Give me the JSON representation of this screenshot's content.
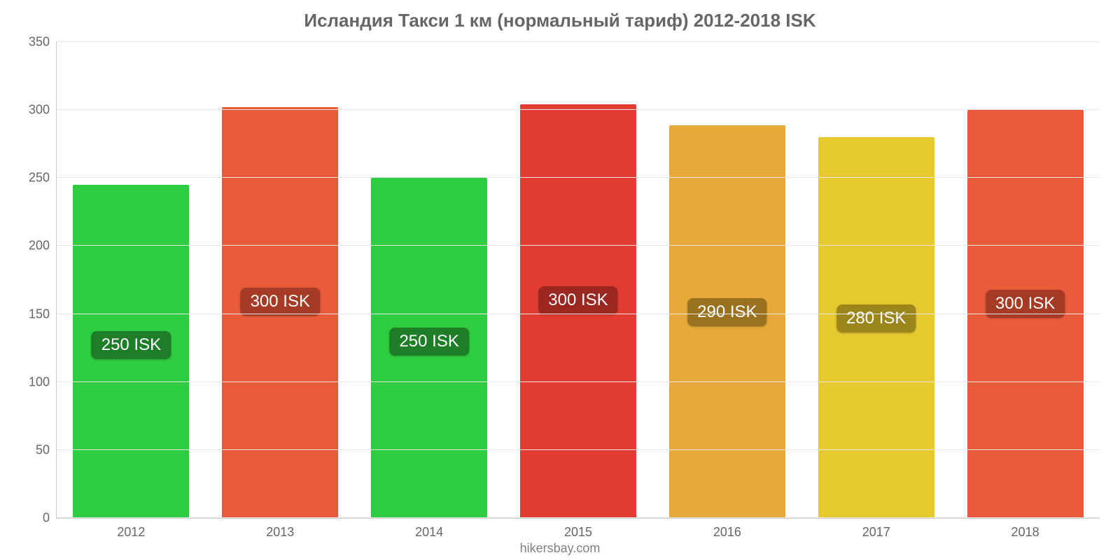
{
  "chart": {
    "type": "bar",
    "title": "Исландия Такси 1 км (нормальный тариф) 2012-2018 ISK",
    "title_fontsize": 26,
    "title_color": "#666666",
    "credit": "hikersbay.com",
    "background_color": "#ffffff",
    "grid_color": "#e6e6e6",
    "axis_color": "#cccccc",
    "xlabel_fontsize": 18,
    "ylabel_fontsize": 18,
    "axis_label_color": "#666666",
    "ylim_min": 0,
    "ylim_max": 350,
    "ytick_step": 50,
    "yticks": [
      0,
      50,
      100,
      150,
      200,
      250,
      300,
      350
    ],
    "bar_width_pct": 78,
    "value_label_fontsize": 24,
    "value_label_text_color": "#ffffff",
    "categories": [
      "2012",
      "2013",
      "2014",
      "2015",
      "2016",
      "2017",
      "2018"
    ],
    "bars": [
      {
        "year": "2012",
        "value": 245,
        "label": "250 ISK",
        "color": "#2ecc40",
        "label_bg": "#1e7e28"
      },
      {
        "year": "2013",
        "value": 302,
        "label": "300 ISK",
        "color": "#e95b3a",
        "label_bg": "#a53b24"
      },
      {
        "year": "2014",
        "value": 250,
        "label": "250 ISK",
        "color": "#2ecc40",
        "label_bg": "#1e7e28"
      },
      {
        "year": "2015",
        "value": 304,
        "label": "300 ISK",
        "color": "#e23b32",
        "label_bg": "#9c2620"
      },
      {
        "year": "2016",
        "value": 289,
        "label": "290 ISK",
        "color": "#e6a93a",
        "label_bg": "#9a711f"
      },
      {
        "year": "2017",
        "value": 280,
        "label": "280 ISK",
        "color": "#e6c82f",
        "label_bg": "#9a861a"
      },
      {
        "year": "2018",
        "value": 300,
        "label": "300 ISK",
        "color": "#e95b3a",
        "label_bg": "#a53b24"
      }
    ]
  }
}
